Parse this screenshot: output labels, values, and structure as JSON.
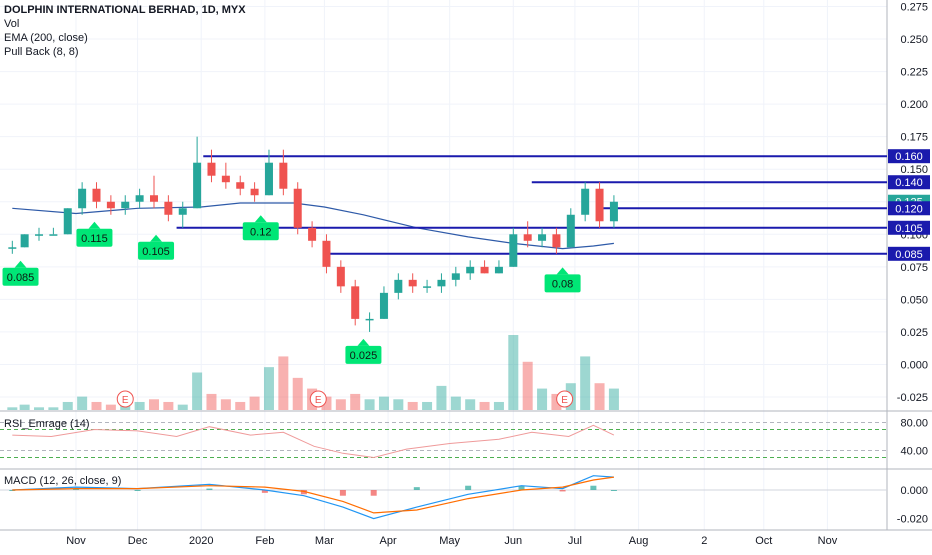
{
  "header": {
    "symbol": "DOLPHIN INTERNATIONAL BERHAD, 1D, MYX",
    "indicators": [
      "Vol",
      "EMA (200, close)",
      "Pull Back (8, 8)"
    ]
  },
  "rsi_pane": {
    "label": "RSI_Emrage (14)",
    "ticks": [
      "80.00",
      "40.00"
    ]
  },
  "macd_pane": {
    "label": "MACD (12, 26, close, 9)",
    "ticks": [
      "0.000",
      "-0.020"
    ]
  },
  "colors": {
    "up": "#26a69a",
    "down": "#ef5350",
    "ema": "#2962ff",
    "level": "#1a1aad",
    "badge": "#00e676",
    "rsi": "#ef9a9a",
    "macd": "#2196f3",
    "signal": "#ff6d00"
  },
  "chart_data": {
    "type": "candlestick",
    "y_axis": {
      "ticks": [
        "0.275",
        "0.250",
        "0.225",
        "0.200",
        "0.175",
        "0.150",
        "0.125",
        "0.100",
        "0.075",
        "0.050",
        "0.025",
        "0.000",
        "-0.025"
      ],
      "range": [
        -0.035,
        0.28
      ]
    },
    "x_axis": {
      "ticks": [
        "Nov",
        "Dec",
        "2020",
        "Feb",
        "Mar",
        "Apr",
        "May",
        "Jun",
        "Jul",
        "Aug",
        "2",
        "Oct",
        "Nov"
      ]
    },
    "price_labels": [
      {
        "value": 0.16,
        "text": "0.160",
        "color": "#1a1aad"
      },
      {
        "value": 0.14,
        "text": "0.140",
        "color": "#1a1aad"
      },
      {
        "value": 0.125,
        "text": "0.125",
        "color": "#26a69a"
      },
      {
        "value": 0.12,
        "text": "0.120",
        "color": "#1a1aad"
      },
      {
        "value": 0.105,
        "text": "0.105",
        "color": "#1a1aad"
      },
      {
        "value": 0.085,
        "text": "0.085",
        "color": "#1a1aad"
      }
    ],
    "levels": [
      {
        "value": 0.16,
        "from": "2020-01-02",
        "to": "2020-11-30"
      },
      {
        "value": 0.14,
        "from": "2020-06-10",
        "to": "2020-11-30"
      },
      {
        "value": 0.12,
        "from": "2020-07-12",
        "to": "2020-11-30"
      },
      {
        "value": 0.105,
        "from": "2019-12-20",
        "to": "2020-11-30"
      },
      {
        "value": 0.085,
        "from": "2020-03-01",
        "to": "2020-11-30"
      }
    ],
    "badges": [
      {
        "text": "0.085",
        "date": "2019-10-05",
        "value": 0.085,
        "pointer": "up"
      },
      {
        "text": "0.115",
        "date": "2019-11-10",
        "value": 0.115,
        "pointer": "up"
      },
      {
        "text": "0.105",
        "date": "2019-12-10",
        "value": 0.105,
        "pointer": "up"
      },
      {
        "text": "0.12",
        "date": "2020-01-30",
        "value": 0.12,
        "pointer": "up"
      },
      {
        "text": "0.025",
        "date": "2020-03-20",
        "value": 0.025,
        "pointer": "up"
      },
      {
        "text": "0.08",
        "date": "2020-06-25",
        "value": 0.08,
        "pointer": "up"
      }
    ],
    "earnings_markers": [
      {
        "text": "E",
        "date": "2019-11-25"
      },
      {
        "text": "E",
        "date": "2020-02-27"
      },
      {
        "text": "E",
        "date": "2020-06-26"
      }
    ],
    "ema200": [
      [
        "2019-10-01",
        0.12
      ],
      [
        "2019-11-01",
        0.116
      ],
      [
        "2019-12-01",
        0.12
      ],
      [
        "2020-01-01",
        0.121
      ],
      [
        "2020-01-20",
        0.124
      ],
      [
        "2020-02-15",
        0.124
      ],
      [
        "2020-03-01",
        0.121
      ],
      [
        "2020-03-20",
        0.115
      ],
      [
        "2020-04-15",
        0.105
      ],
      [
        "2020-05-10",
        0.098
      ],
      [
        "2020-06-01",
        0.093
      ],
      [
        "2020-06-25",
        0.089
      ],
      [
        "2020-07-10",
        0.091
      ],
      [
        "2020-07-20",
        0.093
      ]
    ],
    "candles": [
      [
        "2019-10-01",
        0.09,
        0.095,
        0.085,
        0.09
      ],
      [
        "2019-10-07",
        0.09,
        0.1,
        0.09,
        0.1
      ],
      [
        "2019-10-14",
        0.1,
        0.105,
        0.095,
        0.1
      ],
      [
        "2019-10-21",
        0.1,
        0.105,
        0.1,
        0.1
      ],
      [
        "2019-10-28",
        0.1,
        0.12,
        0.1,
        0.12
      ],
      [
        "2019-11-04",
        0.12,
        0.14,
        0.115,
        0.135
      ],
      [
        "2019-11-11",
        0.135,
        0.14,
        0.12,
        0.125
      ],
      [
        "2019-11-18",
        0.125,
        0.13,
        0.115,
        0.12
      ],
      [
        "2019-11-25",
        0.12,
        0.13,
        0.115,
        0.125
      ],
      [
        "2019-12-02",
        0.125,
        0.135,
        0.12,
        0.13
      ],
      [
        "2019-12-09",
        0.13,
        0.145,
        0.12,
        0.125
      ],
      [
        "2019-12-16",
        0.125,
        0.13,
        0.11,
        0.115
      ],
      [
        "2019-12-23",
        0.115,
        0.125,
        0.105,
        0.12
      ],
      [
        "2019-12-30",
        0.12,
        0.175,
        0.12,
        0.155
      ],
      [
        "2020-01-06",
        0.155,
        0.165,
        0.14,
        0.145
      ],
      [
        "2020-01-13",
        0.145,
        0.155,
        0.135,
        0.14
      ],
      [
        "2020-01-20",
        0.14,
        0.145,
        0.13,
        0.135
      ],
      [
        "2020-01-27",
        0.135,
        0.14,
        0.125,
        0.13
      ],
      [
        "2020-02-03",
        0.13,
        0.165,
        0.13,
        0.155
      ],
      [
        "2020-02-10",
        0.155,
        0.165,
        0.13,
        0.135
      ],
      [
        "2020-02-17",
        0.135,
        0.14,
        0.1,
        0.105
      ],
      [
        "2020-02-24",
        0.105,
        0.11,
        0.09,
        0.095
      ],
      [
        "2020-03-02",
        0.095,
        0.1,
        0.07,
        0.075
      ],
      [
        "2020-03-09",
        0.075,
        0.08,
        0.055,
        0.06
      ],
      [
        "2020-03-16",
        0.06,
        0.065,
        0.03,
        0.035
      ],
      [
        "2020-03-23",
        0.035,
        0.04,
        0.025,
        0.035
      ],
      [
        "2020-03-30",
        0.035,
        0.06,
        0.035,
        0.055
      ],
      [
        "2020-04-06",
        0.055,
        0.07,
        0.05,
        0.065
      ],
      [
        "2020-04-13",
        0.065,
        0.07,
        0.055,
        0.06
      ],
      [
        "2020-04-20",
        0.06,
        0.065,
        0.055,
        0.06
      ],
      [
        "2020-04-27",
        0.06,
        0.07,
        0.055,
        0.065
      ],
      [
        "2020-05-04",
        0.065,
        0.075,
        0.06,
        0.07
      ],
      [
        "2020-05-11",
        0.07,
        0.08,
        0.065,
        0.075
      ],
      [
        "2020-05-18",
        0.075,
        0.08,
        0.07,
        0.07
      ],
      [
        "2020-05-25",
        0.07,
        0.08,
        0.07,
        0.075
      ],
      [
        "2020-06-01",
        0.075,
        0.105,
        0.075,
        0.1
      ],
      [
        "2020-06-08",
        0.1,
        0.11,
        0.09,
        0.095
      ],
      [
        "2020-06-15",
        0.095,
        0.105,
        0.09,
        0.1
      ],
      [
        "2020-06-22",
        0.1,
        0.105,
        0.085,
        0.09
      ],
      [
        "2020-06-29",
        0.09,
        0.12,
        0.09,
        0.115
      ],
      [
        "2020-07-06",
        0.115,
        0.14,
        0.11,
        0.135
      ],
      [
        "2020-07-13",
        0.135,
        0.14,
        0.105,
        0.11
      ],
      [
        "2020-07-20",
        0.11,
        0.13,
        0.105,
        0.125
      ]
    ],
    "volume": [
      [
        "2019-10-01",
        1
      ],
      [
        "2019-10-07",
        2
      ],
      [
        "2019-10-14",
        1
      ],
      [
        "2019-10-21",
        1
      ],
      [
        "2019-10-28",
        3
      ],
      [
        "2019-11-04",
        5
      ],
      [
        "2019-11-11",
        3
      ],
      [
        "2019-11-18",
        2
      ],
      [
        "2019-11-25",
        2
      ],
      [
        "2019-12-02",
        3
      ],
      [
        "2019-12-09",
        4
      ],
      [
        "2019-12-16",
        3
      ],
      [
        "2019-12-23",
        2
      ],
      [
        "2019-12-30",
        14
      ],
      [
        "2020-01-06",
        6
      ],
      [
        "2020-01-13",
        4
      ],
      [
        "2020-01-20",
        3
      ],
      [
        "2020-01-27",
        5
      ],
      [
        "2020-02-03",
        16
      ],
      [
        "2020-02-10",
        20
      ],
      [
        "2020-02-17",
        12
      ],
      [
        "2020-02-24",
        8
      ],
      [
        "2020-03-02",
        5
      ],
      [
        "2020-03-09",
        4
      ],
      [
        "2020-03-16",
        6
      ],
      [
        "2020-03-23",
        4
      ],
      [
        "2020-03-30",
        5
      ],
      [
        "2020-04-06",
        4
      ],
      [
        "2020-04-13",
        3
      ],
      [
        "2020-04-20",
        3
      ],
      [
        "2020-04-27",
        9
      ],
      [
        "2020-05-04",
        5
      ],
      [
        "2020-05-11",
        4
      ],
      [
        "2020-05-18",
        3
      ],
      [
        "2020-05-25",
        3
      ],
      [
        "2020-06-01",
        28
      ],
      [
        "2020-06-08",
        18
      ],
      [
        "2020-06-15",
        8
      ],
      [
        "2020-06-22",
        6
      ],
      [
        "2020-06-29",
        10
      ],
      [
        "2020-07-06",
        20
      ],
      [
        "2020-07-13",
        10
      ],
      [
        "2020-07-20",
        8
      ]
    ],
    "rsi": [
      [
        "2019-10-01",
        62
      ],
      [
        "2019-10-20",
        60
      ],
      [
        "2019-11-10",
        70
      ],
      [
        "2019-12-01",
        68
      ],
      [
        "2019-12-20",
        60
      ],
      [
        "2020-01-05",
        74
      ],
      [
        "2020-01-25",
        62
      ],
      [
        "2020-02-10",
        66
      ],
      [
        "2020-02-25",
        46
      ],
      [
        "2020-03-10",
        36
      ],
      [
        "2020-03-25",
        30
      ],
      [
        "2020-04-10",
        42
      ],
      [
        "2020-05-01",
        50
      ],
      [
        "2020-05-25",
        56
      ],
      [
        "2020-06-10",
        66
      ],
      [
        "2020-06-28",
        60
      ],
      [
        "2020-07-10",
        76
      ],
      [
        "2020-07-20",
        62
      ]
    ],
    "macd": [
      [
        "2019-10-01",
        0.0
      ],
      [
        "2019-11-01",
        0.002
      ],
      [
        "2019-12-01",
        0.001
      ],
      [
        "2020-01-05",
        0.004
      ],
      [
        "2020-02-01",
        0.0
      ],
      [
        "2020-02-20",
        -0.004
      ],
      [
        "2020-03-10",
        -0.012
      ],
      [
        "2020-03-25",
        -0.02
      ],
      [
        "2020-04-15",
        -0.012
      ],
      [
        "2020-05-10",
        -0.003
      ],
      [
        "2020-06-05",
        0.003
      ],
      [
        "2020-06-25",
        0.001
      ],
      [
        "2020-07-10",
        0.01
      ],
      [
        "2020-07-20",
        0.009
      ]
    ],
    "signal": [
      [
        "2019-10-01",
        0.0
      ],
      [
        "2019-11-01",
        0.001
      ],
      [
        "2019-12-01",
        0.001
      ],
      [
        "2020-01-05",
        0.003
      ],
      [
        "2020-02-01",
        0.002
      ],
      [
        "2020-02-20",
        -0.001
      ],
      [
        "2020-03-10",
        -0.008
      ],
      [
        "2020-03-25",
        -0.016
      ],
      [
        "2020-04-15",
        -0.014
      ],
      [
        "2020-05-10",
        -0.006
      ],
      [
        "2020-06-05",
        0.0
      ],
      [
        "2020-06-25",
        0.002
      ],
      [
        "2020-07-10",
        0.007
      ],
      [
        "2020-07-20",
        0.009
      ]
    ]
  }
}
